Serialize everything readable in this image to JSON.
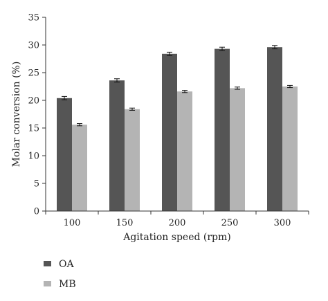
{
  "chart_data": {
    "type": "bar",
    "title": "",
    "xlabel": "Agitation speed (rpm)",
    "ylabel": "Molar conversion (%)",
    "ylim": [
      0,
      35
    ],
    "yticks": [
      0,
      5,
      10,
      15,
      20,
      25,
      30,
      35
    ],
    "categories": [
      "100",
      "150",
      "200",
      "250",
      "300"
    ],
    "grid": false,
    "legend_position": "bottom-left",
    "series": [
      {
        "name": "OA",
        "color": "#555555",
        "values": [
          20.4,
          23.6,
          28.4,
          29.3,
          29.6
        ],
        "errors": [
          0.3,
          0.3,
          0.3,
          0.3,
          0.3
        ]
      },
      {
        "name": "MB",
        "color": "#b4b4b4",
        "values": [
          15.6,
          18.4,
          21.6,
          22.2,
          22.5
        ],
        "errors": [
          0.2,
          0.2,
          0.2,
          0.2,
          0.2
        ]
      }
    ]
  }
}
